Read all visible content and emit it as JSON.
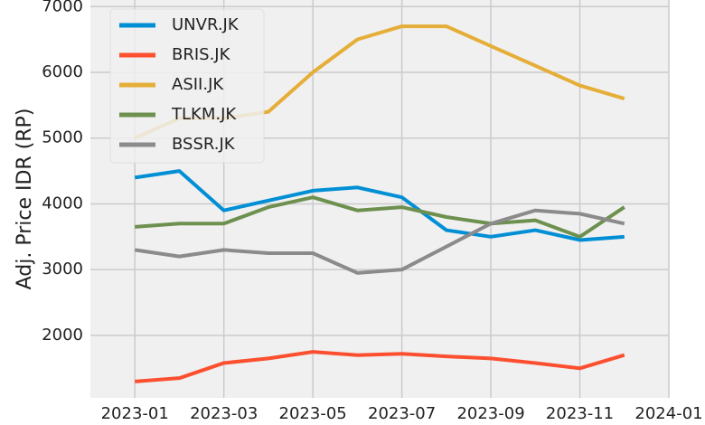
{
  "chart_data": {
    "type": "line",
    "ylabel": "Adj. Price IDR (RP)",
    "x": [
      "2023-01",
      "2023-02",
      "2023-03",
      "2023-04",
      "2023-05",
      "2023-06",
      "2023-07",
      "2023-08",
      "2023-09",
      "2023-10",
      "2023-11",
      "2023-12"
    ],
    "xlim": [
      "2022-12",
      "2024-01"
    ],
    "xticks": [
      "2023-01",
      "2023-03",
      "2023-05",
      "2023-07",
      "2023-09",
      "2023-11",
      "2024-01"
    ],
    "ylim": [
      1050,
      7100
    ],
    "yticks": [
      2000,
      3000,
      4000,
      5000,
      6000,
      7000
    ],
    "grid": true,
    "legend": "upper left",
    "series": [
      {
        "name": "UNVR.JK",
        "color": "#008fd5",
        "values": [
          4400,
          4500,
          3900,
          4050,
          4200,
          4250,
          4100,
          3600,
          3500,
          3600,
          3450,
          3500
        ]
      },
      {
        "name": "BRIS.JK",
        "color": "#fc4f30",
        "values": [
          1300,
          1350,
          1580,
          1650,
          1750,
          1700,
          1720,
          1680,
          1650,
          1580,
          1500,
          1700
        ]
      },
      {
        "name": "ASII.JK",
        "color": "#e5ae38",
        "values": [
          5000,
          5300,
          5300,
          5400,
          6000,
          6500,
          6700,
          6700,
          6400,
          6100,
          5800,
          5600
        ]
      },
      {
        "name": "TLKM.JK",
        "color": "#6d904f",
        "values": [
          3650,
          3700,
          3700,
          3950,
          4100,
          3900,
          3950,
          3800,
          3700,
          3750,
          3500,
          3950
        ]
      },
      {
        "name": "BSSR.JK",
        "color": "#8b8b8b",
        "values": [
          3300,
          3200,
          3300,
          3250,
          3250,
          2950,
          3000,
          3350,
          3700,
          3900,
          3850,
          3700
        ]
      }
    ]
  }
}
